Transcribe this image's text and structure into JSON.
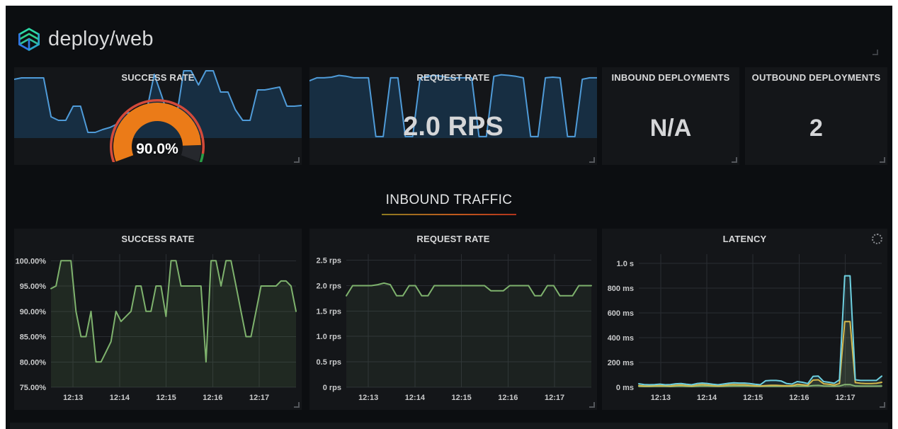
{
  "header": {
    "title": "deploy/web"
  },
  "top_row": {
    "success_rate": {
      "title": "SUCCESS RATE",
      "gauge_value": "90.0%"
    },
    "request_rate": {
      "title": "REQUEST RATE",
      "value": "2.0 RPS"
    },
    "inbound_deployments": {
      "title": "INBOUND DEPLOYMENTS",
      "value": "N/A"
    },
    "outbound_deployments": {
      "title": "OUTBOUND DEPLOYMENTS",
      "value": "2"
    }
  },
  "section": {
    "title": "INBOUND TRAFFIC"
  },
  "colors": {
    "dashboard_bg": "#0c0e11",
    "panel_bg": "#141619",
    "blue": "#1f78c1",
    "green": "#7eb26d",
    "yellow": "#e0b63b",
    "cyan": "#6ed0e0",
    "gauge_orange": "#eb7b18",
    "threshold_red": "#d44a3a",
    "threshold_green": "#299c46",
    "underline_gradient": [
      "#8d7a20",
      "#b2341c"
    ]
  },
  "chart_data": [
    {
      "id": "success-rate-sparkline",
      "type": "area",
      "ylim": [
        0,
        100
      ],
      "series": [
        {
          "name": "success-rate",
          "color": "#4f9bd8",
          "fill": "#1f78c1",
          "fill_opacity": 0.25,
          "values": [
            83,
            85,
            85,
            85,
            85,
            30,
            25,
            25,
            45,
            45,
            8,
            8,
            12,
            15,
            20,
            35,
            36,
            38,
            40,
            90,
            60,
            28,
            28,
            95,
            95,
            75,
            95,
            95,
            65,
            65,
            40,
            25,
            25,
            68,
            68,
            70,
            72,
            45,
            45,
            46
          ]
        }
      ]
    },
    {
      "id": "success-rate-gauge",
      "type": "gauge",
      "value": 90,
      "min": 0,
      "max": 100,
      "label": "90.0%",
      "start_deg": 200,
      "end_deg": -20,
      "bar_color": "#eb7b18",
      "rest_color": "#26282d",
      "thresholds": [
        {
          "to": 95,
          "color": "#d44a3a"
        },
        {
          "to": 100,
          "color": "#299c46"
        }
      ]
    },
    {
      "id": "request-rate-sparkline",
      "type": "area",
      "ylim": [
        0,
        2.35
      ],
      "series": [
        {
          "name": "request-rate",
          "color": "#4f9bd8",
          "fill": "#1f78c1",
          "fill_opacity": 0.25,
          "values": [
            1.9,
            2.0,
            2.0,
            2.02,
            2.08,
            2.05,
            2.0,
            2.0,
            2.0,
            0.05,
            0.05,
            2.0,
            2.0,
            0.05,
            0.05,
            2.0,
            2.05,
            2.08,
            2.05,
            2.0,
            2.0,
            2.0,
            2.0,
            0.05,
            0.05,
            2.05,
            2.1,
            2.08,
            2.05,
            2.0,
            0.05,
            0.05,
            2.0,
            2.02,
            2.0,
            0.05,
            0.05,
            1.95,
            2.0,
            2.0
          ]
        }
      ]
    },
    {
      "id": "inbound-success-rate",
      "type": "line",
      "title": "SUCCESS RATE",
      "ylim": [
        75,
        101.3
      ],
      "yticks": [
        {
          "v": 75,
          "label": "75.00%"
        },
        {
          "v": 80,
          "label": "80.00%"
        },
        {
          "v": 85,
          "label": "85.00%"
        },
        {
          "v": 90,
          "label": "90.00%"
        },
        {
          "v": 95,
          "label": "95.00%"
        },
        {
          "v": 100,
          "label": "100.00%"
        }
      ],
      "xticks": [
        {
          "f": 0.09,
          "label": "12:13"
        },
        {
          "f": 0.28,
          "label": "12:14"
        },
        {
          "f": 0.47,
          "label": "12:15"
        },
        {
          "f": 0.66,
          "label": "12:16"
        },
        {
          "f": 0.85,
          "label": "12:17"
        }
      ],
      "margins": {
        "l": 52,
        "r": 8,
        "t": 36,
        "b": 32
      },
      "series": [
        {
          "name": "success-rate",
          "color": "#7eb26d",
          "fill": "#7eb26d",
          "fill_opacity": 0.12,
          "values": [
            94.5,
            95,
            100,
            100,
            100,
            90,
            85,
            85,
            90,
            80,
            80,
            82,
            84,
            90,
            88,
            89,
            90,
            95,
            95,
            90,
            90,
            95,
            95,
            89,
            100,
            100,
            95,
            95,
            95,
            95,
            95,
            80,
            100,
            100,
            95,
            100,
            100,
            95,
            90,
            85,
            85,
            90,
            95,
            95,
            95,
            95,
            96,
            96,
            95,
            90
          ]
        }
      ]
    },
    {
      "id": "inbound-request-rate",
      "type": "line",
      "title": "REQUEST RATE",
      "ylim": [
        0,
        2.62
      ],
      "yticks": [
        {
          "v": 0,
          "label": "0 rps"
        },
        {
          "v": 0.5,
          "label": "0.5 rps"
        },
        {
          "v": 1,
          "label": "1.0 rps"
        },
        {
          "v": 1.5,
          "label": "1.5 rps"
        },
        {
          "v": 2,
          "label": "2.0 rps"
        },
        {
          "v": 2.5,
          "label": "2.5 rps"
        }
      ],
      "xticks": [
        {
          "f": 0.09,
          "label": "12:13"
        },
        {
          "f": 0.28,
          "label": "12:14"
        },
        {
          "f": 0.47,
          "label": "12:15"
        },
        {
          "f": 0.66,
          "label": "12:16"
        },
        {
          "f": 0.85,
          "label": "12:17"
        }
      ],
      "margins": {
        "l": 52,
        "r": 8,
        "t": 36,
        "b": 32
      },
      "series": [
        {
          "name": "request-rate",
          "color": "#7eb26d",
          "fill": "#7eb26d",
          "fill_opacity": 0.08,
          "values": [
            1.8,
            2.0,
            2.0,
            2.0,
            2.0,
            2.02,
            2.05,
            2.02,
            1.8,
            1.8,
            2.0,
            2.0,
            1.8,
            1.8,
            2.0,
            2.0,
            2.0,
            2.0,
            2.0,
            2.0,
            2.0,
            2.0,
            2.0,
            1.9,
            1.9,
            1.9,
            2.0,
            2.0,
            2.0,
            2.0,
            1.8,
            1.8,
            2.0,
            2.0,
            1.8,
            1.8,
            1.8,
            2.0,
            2.0,
            2.0
          ]
        }
      ]
    },
    {
      "id": "inbound-latency",
      "type": "line",
      "title": "LATENCY",
      "ylim": [
        0,
        1075
      ],
      "yticks": [
        {
          "v": 0,
          "label": "0 ms"
        },
        {
          "v": 200,
          "label": "200 ms"
        },
        {
          "v": 400,
          "label": "400 ms"
        },
        {
          "v": 600,
          "label": "600 ms"
        },
        {
          "v": 800,
          "label": "800 ms"
        },
        {
          "v": 1000,
          "label": "1.0 s"
        }
      ],
      "xticks": [
        {
          "f": 0.09,
          "label": "12:13"
        },
        {
          "f": 0.28,
          "label": "12:14"
        },
        {
          "f": 0.47,
          "label": "12:15"
        },
        {
          "f": 0.66,
          "label": "12:16"
        },
        {
          "f": 0.85,
          "label": "12:17"
        }
      ],
      "margins": {
        "l": 52,
        "r": 8,
        "t": 36,
        "b": 32
      },
      "series": [
        {
          "name": "latency-green",
          "color": "#7eb26d",
          "fill": "#7eb26d",
          "fill_opacity": 0.1,
          "values": [
            7,
            6,
            6,
            7,
            8,
            7,
            6,
            8,
            9,
            7,
            6,
            8,
            10,
            9,
            8,
            7,
            8,
            9,
            10,
            10,
            10,
            9,
            8,
            7,
            8,
            8,
            8,
            8,
            8,
            8,
            10,
            9,
            8,
            14,
            15,
            10,
            9,
            8,
            10,
            22,
            22,
            10,
            9,
            9,
            9,
            9,
            10
          ]
        },
        {
          "name": "latency-yellow",
          "color": "#e0b63b",
          "fill": "#e0b63b",
          "fill_opacity": 0.1,
          "values": [
            14,
            10,
            10,
            12,
            14,
            12,
            10,
            16,
            18,
            14,
            10,
            18,
            22,
            18,
            14,
            10,
            14,
            20,
            22,
            20,
            20,
            16,
            12,
            10,
            14,
            16,
            16,
            14,
            12,
            12,
            24,
            20,
            16,
            58,
            60,
            28,
            24,
            18,
            30,
            530,
            530,
            38,
            32,
            30,
            30,
            32,
            40
          ]
        },
        {
          "name": "latency-cyan",
          "color": "#6ed0e0",
          "fill": "#6ed0e0",
          "fill_opacity": 0.1,
          "values": [
            28,
            22,
            20,
            22,
            25,
            20,
            22,
            28,
            30,
            24,
            20,
            30,
            34,
            30,
            24,
            20,
            26,
            32,
            36,
            34,
            34,
            30,
            24,
            20,
            52,
            55,
            55,
            50,
            30,
            26,
            46,
            40,
            30,
            88,
            90,
            46,
            40,
            32,
            60,
            900,
            900,
            60,
            55,
            55,
            55,
            55,
            90
          ]
        }
      ]
    }
  ]
}
